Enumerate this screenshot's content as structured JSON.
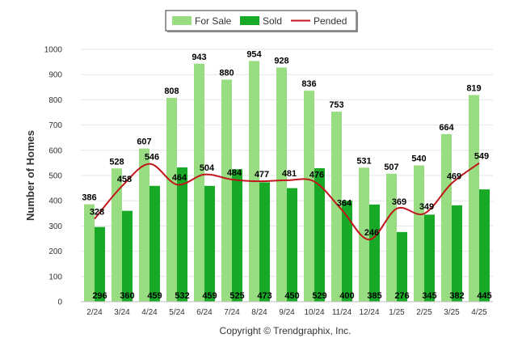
{
  "chart_data": {
    "type": "bar",
    "categories": [
      "2/24",
      "3/24",
      "4/24",
      "5/24",
      "6/24",
      "7/24",
      "8/24",
      "9/24",
      "10/24",
      "11/24",
      "12/24",
      "1/25",
      "2/25",
      "3/25",
      "4/25"
    ],
    "series": [
      {
        "name": "For Sale",
        "type": "bar",
        "color": "#99dd82",
        "values": [
          386,
          528,
          607,
          808,
          943,
          880,
          954,
          928,
          836,
          753,
          531,
          507,
          540,
          664,
          819
        ]
      },
      {
        "name": "Sold",
        "type": "bar",
        "color": "#18aa27",
        "values": [
          296,
          360,
          459,
          532,
          459,
          525,
          473,
          450,
          529,
          400,
          385,
          276,
          345,
          382,
          445
        ]
      },
      {
        "name": "Pended",
        "type": "line",
        "color": "#c0161b",
        "values": [
          328,
          458,
          546,
          464,
          504,
          484,
          477,
          481,
          476,
          364,
          246,
          369,
          349,
          469,
          549
        ]
      }
    ],
    "ylabel": "Number of Homes",
    "xlabel": "",
    "ylim": [
      0,
      1000
    ],
    "yticks": [
      0,
      100,
      200,
      300,
      400,
      500,
      600,
      700,
      800,
      900,
      1000
    ],
    "grid": true,
    "legend_position": "top-center",
    "credit": "Copyright © Trendgraphix, Inc."
  }
}
